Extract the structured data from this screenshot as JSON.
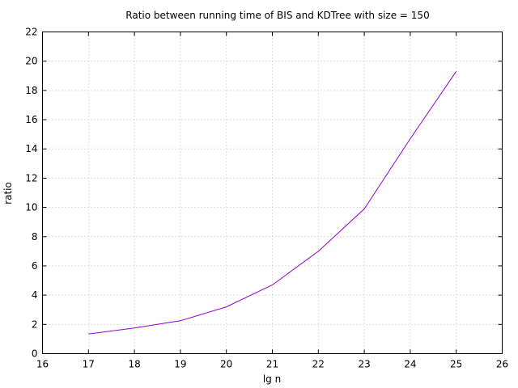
{
  "chart_data": {
    "type": "line",
    "title": "Ratio between running time of BIS and KDTree with size = 150",
    "xlabel": "lg n",
    "ylabel": "ratio",
    "xlim": [
      16,
      26
    ],
    "ylim": [
      0,
      22
    ],
    "xticks": [
      16,
      17,
      18,
      19,
      20,
      21,
      22,
      23,
      24,
      25,
      26
    ],
    "yticks": [
      0,
      2,
      4,
      6,
      8,
      10,
      12,
      14,
      16,
      18,
      20,
      22
    ],
    "grid": true,
    "series": [
      {
        "color": "#9400d3",
        "x": [
          17,
          18,
          19,
          20,
          21,
          22,
          23,
          24,
          25
        ],
        "y": [
          1.35,
          1.75,
          2.25,
          3.2,
          4.7,
          7.0,
          9.9,
          14.7,
          19.3
        ]
      }
    ]
  }
}
